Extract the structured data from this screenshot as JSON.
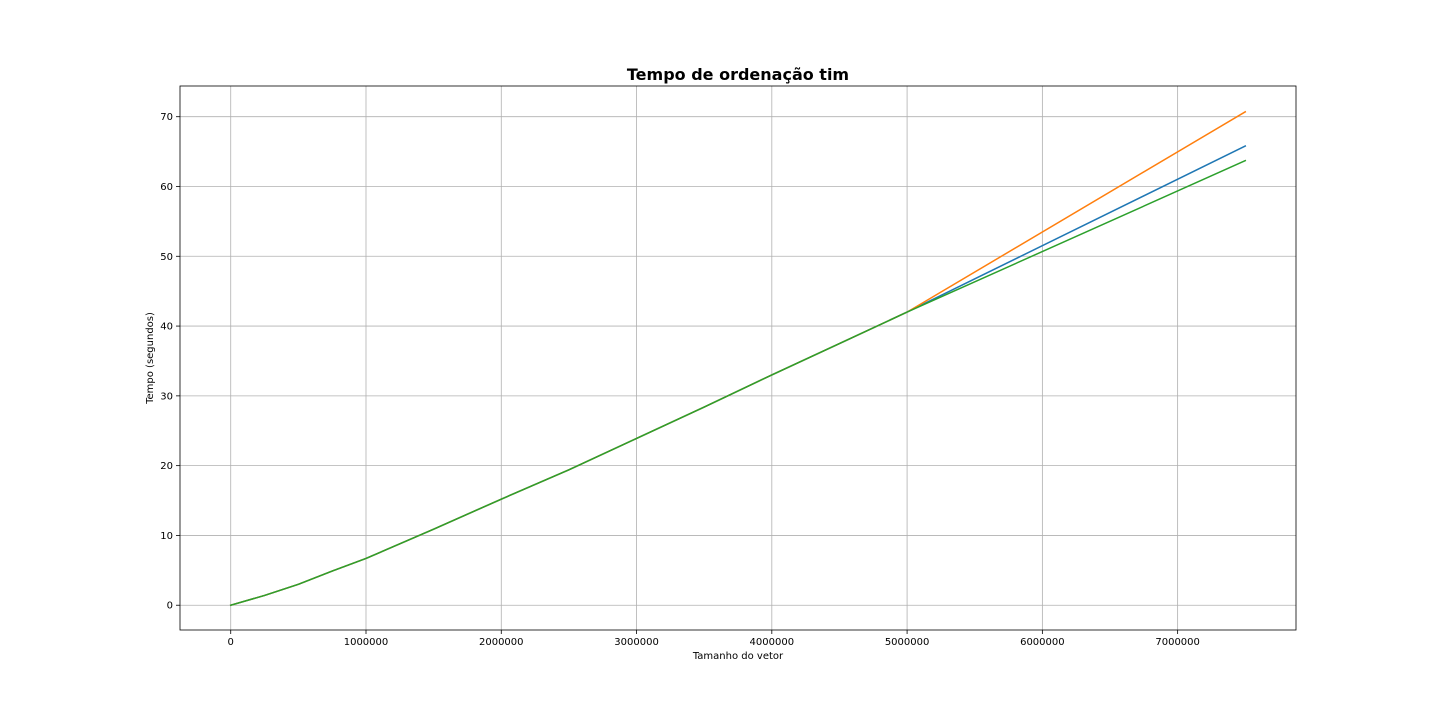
{
  "chart_data": {
    "type": "line",
    "title": "Tempo de ordenação tim",
    "xlabel": "Tamanho do vetor",
    "ylabel": "Tempo (segundos)",
    "xlim": [
      -375000,
      7875000
    ],
    "ylim": [
      -3.55,
      74.4
    ],
    "x_ticks": [
      0,
      1000000,
      2000000,
      3000000,
      4000000,
      5000000,
      6000000,
      7000000
    ],
    "x_tick_labels": [
      "0",
      "1000000",
      "2000000",
      "3000000",
      "4000000",
      "5000000",
      "6000000",
      "7000000"
    ],
    "y_ticks": [
      0,
      10,
      20,
      30,
      40,
      50,
      60,
      70
    ],
    "y_tick_labels": [
      "0",
      "10",
      "20",
      "30",
      "40",
      "50",
      "60",
      "70"
    ],
    "grid": true,
    "x": [
      0,
      250000,
      500000,
      750000,
      1000000,
      1500000,
      2000000,
      2500000,
      3000000,
      3500000,
      4000000,
      4500000,
      5000000,
      7500000
    ],
    "series": [
      {
        "color": "#1f77b4",
        "values": [
          0,
          1.4,
          3.0,
          4.9,
          6.7,
          10.9,
          15.2,
          19.4,
          23.9,
          28.4,
          33.0,
          37.5,
          42.0,
          65.8
        ]
      },
      {
        "color": "#ff7f0e",
        "values": [
          0,
          1.4,
          3.0,
          4.9,
          6.7,
          10.9,
          15.2,
          19.4,
          23.9,
          28.4,
          33.0,
          37.5,
          42.0,
          70.7
        ]
      },
      {
        "color": "#2ca02c",
        "values": [
          0,
          1.4,
          3.0,
          4.9,
          6.7,
          10.9,
          15.2,
          19.4,
          23.9,
          28.4,
          33.0,
          37.5,
          42.0,
          63.7
        ]
      }
    ]
  }
}
